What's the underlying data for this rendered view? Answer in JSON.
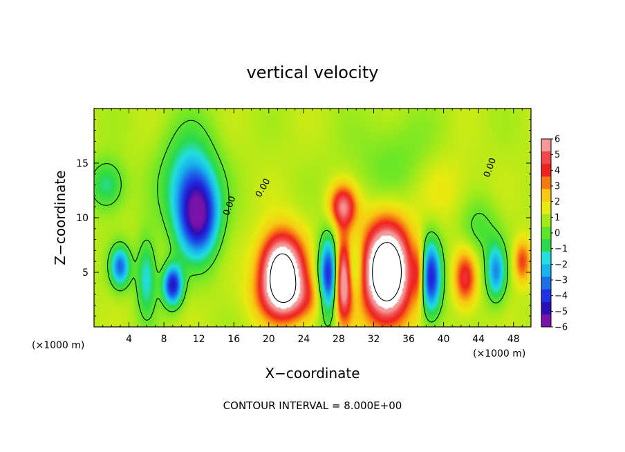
{
  "chart_data": {
    "type": "heatmap",
    "title": "vertical velocity",
    "xlabel": "X−coordinate",
    "ylabel": "Z−coordinate",
    "x_unit_left": "(×1000 m)",
    "x_unit_right": "(×1000 m)",
    "footer": "CONTOUR INTERVAL = 8.000E+00",
    "xlim": [
      0,
      50
    ],
    "ylim": [
      0,
      20
    ],
    "x_ticks": [
      4,
      8,
      12,
      16,
      20,
      24,
      28,
      32,
      36,
      40,
      44,
      48
    ],
    "y_ticks": [
      5,
      10,
      15
    ],
    "contour_label": "0.00",
    "colorbar": {
      "ticks": [
        "6",
        "5",
        "4",
        "3",
        "2",
        "1",
        "0",
        "−1",
        "−2",
        "−3",
        "−4",
        "−5",
        "−6"
      ],
      "min": -6,
      "max": 6,
      "colors": [
        "#7a11a8",
        "#2a10b6",
        "#1e32e8",
        "#1c6fe6",
        "#18b4ee",
        "#22dede",
        "#2bd94a",
        "#5ce62a",
        "#a6ea1a",
        "#e8ea10",
        "#f9c812",
        "#f77a12",
        "#f02020",
        "#f04848",
        "#f49898"
      ]
    },
    "features": [
      {
        "x": 12,
        "z": 10,
        "value": -5.5,
        "sx": 1.6,
        "sz": 2.6
      },
      {
        "x": 11,
        "z": 13,
        "value": -3.5,
        "sx": 2.2,
        "sz": 3.5
      },
      {
        "x": 9,
        "z": 3.8,
        "value": -6,
        "sx": 0.8,
        "sz": 1.3
      },
      {
        "x": 3,
        "z": 5.5,
        "value": -4.5,
        "sx": 0.8,
        "sz": 1.3
      },
      {
        "x": 6,
        "z": 4.5,
        "value": -3,
        "sx": 0.8,
        "sz": 2.5
      },
      {
        "x": 1.5,
        "z": 13,
        "value": -2.5,
        "sx": 1.4,
        "sz": 1.6
      },
      {
        "x": 21.5,
        "z": 5,
        "value": 9,
        "sx": 1.7,
        "sz": 2.4
      },
      {
        "x": 27,
        "z": 4.5,
        "value": -7,
        "sx": 0.9,
        "sz": 2.6
      },
      {
        "x": 28.5,
        "z": 4.5,
        "value": 8,
        "sx": 0.8,
        "sz": 2.6
      },
      {
        "x": 29.5,
        "z": 5,
        "value": -3,
        "sx": 0.8,
        "sz": 2
      },
      {
        "x": 28.5,
        "z": 11,
        "value": 4.5,
        "sx": 1.1,
        "sz": 1.4
      },
      {
        "x": 33.5,
        "z": 5,
        "value": 10,
        "sx": 1.9,
        "sz": 3.1
      },
      {
        "x": 38.5,
        "z": 4.5,
        "value": -6,
        "sx": 0.9,
        "sz": 2.4
      },
      {
        "x": 37.2,
        "z": 4.8,
        "value": 3,
        "sx": 0.5,
        "sz": 2
      },
      {
        "x": 42.5,
        "z": 4.5,
        "value": 3.5,
        "sx": 0.9,
        "sz": 1.8
      },
      {
        "x": 46,
        "z": 5,
        "value": -4,
        "sx": 0.8,
        "sz": 1.8
      },
      {
        "x": 49,
        "z": 6,
        "value": 3,
        "sx": 0.7,
        "sz": 1.4
      },
      {
        "x": 23,
        "z": 2.5,
        "value": 2.5,
        "sx": 3,
        "sz": 1.5
      },
      {
        "x": 40,
        "z": 13,
        "value": 1,
        "sx": 2.5,
        "sz": 2.5
      },
      {
        "x": 44,
        "z": 9,
        "value": -1.5,
        "sx": 1.6,
        "sz": 2
      },
      {
        "x": 35,
        "z": 15,
        "value": -1,
        "sx": 4,
        "sz": 3
      }
    ]
  }
}
